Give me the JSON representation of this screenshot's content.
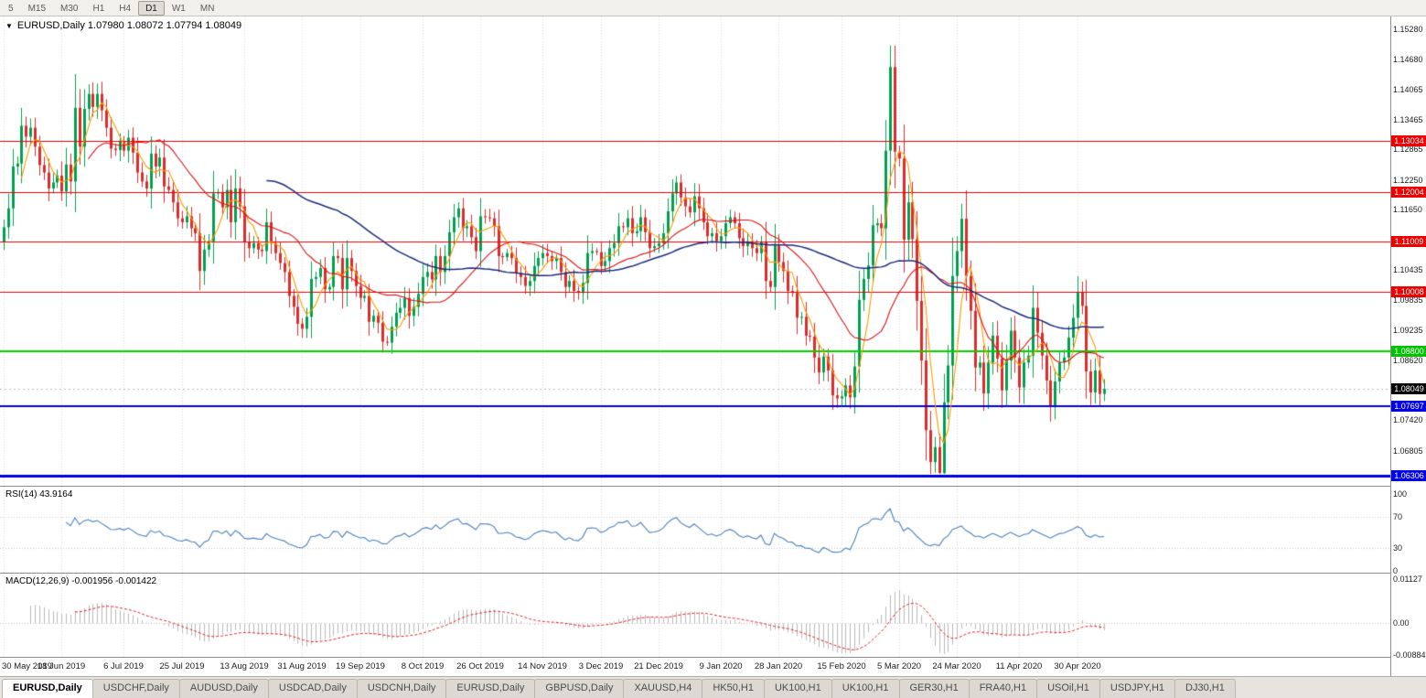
{
  "toolbar": {
    "timeframes": [
      "5",
      "M15",
      "M30",
      "H1",
      "H4",
      "D1",
      "W1",
      "MN"
    ],
    "active_timeframe": "D1"
  },
  "chart": {
    "header": "EURUSD,Daily  1.07980 1.08072 1.07794 1.08049",
    "symbol": "EURUSD,Daily",
    "open": "1.07980",
    "high": "1.08072",
    "low": "1.07794",
    "close": "1.08049",
    "dropdown_icon": "▼"
  },
  "price_axis": {
    "ticks": [
      "1.15280",
      "1.14680",
      "1.14065",
      "1.13465",
      "1.12865",
      "1.12250",
      "1.11650",
      "1.10435",
      "1.09835",
      "1.09235",
      "1.08620",
      "1.07420",
      "1.06805"
    ],
    "badges": [
      {
        "text": "1.13034",
        "bg": "#ee0000"
      },
      {
        "text": "1.12004",
        "bg": "#ee0000"
      },
      {
        "text": "1.11009",
        "bg": "#ee0000"
      },
      {
        "text": "1.10008",
        "bg": "#ee0000"
      },
      {
        "text": "1.08800",
        "bg": "#00c400"
      },
      {
        "text": "1.08049",
        "bg": "#000000"
      },
      {
        "text": "1.07697",
        "bg": "#0000e6"
      },
      {
        "text": "1.06306",
        "bg": "#0000e6"
      }
    ]
  },
  "rsi": {
    "label": "RSI(14) 43.9164",
    "period": 14,
    "value": 43.9164,
    "axis": [
      "100",
      "70",
      "30",
      "0"
    ],
    "upper": 70,
    "lower": 30
  },
  "macd": {
    "label": "MACD(12,26,9) -0.001956 -0.001422",
    "value": -0.001956,
    "signal": -0.001422,
    "axis": [
      "0.01127",
      "0.00",
      "-0.00884"
    ]
  },
  "dates": [
    "30 May 2019",
    "18 Jun 2019",
    "6 Jul 2019",
    "25 Jul 2019",
    "13 Aug 2019",
    "31 Aug 2019",
    "19 Sep 2019",
    "8 Oct 2019",
    "26 Oct 2019",
    "14 Nov 2019",
    "3 Dec 2019",
    "21 Dec 2019",
    "9 Jan 2020",
    "28 Jan 2020",
    "15 Feb 2020",
    "5 Mar 2020",
    "24 Mar 2020",
    "11 Apr 2020",
    "30 Apr 2020"
  ],
  "tabs": [
    {
      "label": "EURUSD,Daily",
      "active": true
    },
    {
      "label": "USDCHF,Daily",
      "active": false
    },
    {
      "label": "AUDUSD,Daily",
      "active": false
    },
    {
      "label": "USDCAD,Daily",
      "active": false
    },
    {
      "label": "USDCNH,Daily",
      "active": false
    },
    {
      "label": "EURUSD,Daily",
      "active": false
    },
    {
      "label": "GBPUSD,Daily",
      "active": false
    },
    {
      "label": "XAUUSD,H4",
      "active": false
    },
    {
      "label": "HK50,H1",
      "active": false
    },
    {
      "label": "UK100,H1",
      "active": false
    },
    {
      "label": "UK100,H1",
      "active": false
    },
    {
      "label": "GER30,H1",
      "active": false
    },
    {
      "label": "FRA40,H1",
      "active": false
    },
    {
      "label": "USOil,H1",
      "active": false
    },
    {
      "label": "USDJPY,H1",
      "active": false
    },
    {
      "label": "DJ30,H1",
      "active": false
    }
  ],
  "chart_data": {
    "type": "candlestick",
    "symbol": "EURUSD",
    "timeframe": "D1",
    "title": "EURUSD,Daily",
    "x_range": [
      "30 May 2019",
      "7 May 2020"
    ],
    "y_range": [
      1.0555,
      1.1554
    ],
    "current_price": 1.08049,
    "extreme_high": 1.1495,
    "extreme_low": 1.0634,
    "levels": [
      {
        "price": 1.13034,
        "color": "#ee0000",
        "width": 1,
        "kind": "resistance"
      },
      {
        "price": 1.12004,
        "color": "#ee0000",
        "width": 1,
        "kind": "resistance"
      },
      {
        "price": 1.11009,
        "color": "#ee0000",
        "width": 1,
        "kind": "resistance"
      },
      {
        "price": 1.10008,
        "color": "#ee0000",
        "width": 1,
        "kind": "resistance"
      },
      {
        "price": 1.088,
        "color": "#00d200",
        "width": 2,
        "kind": "support"
      },
      {
        "price": 1.07697,
        "color": "#0000e6",
        "width": 2,
        "kind": "support"
      },
      {
        "price": 1.06306,
        "color": "#0000e6",
        "width": 3,
        "kind": "support"
      }
    ],
    "moving_averages": [
      {
        "period": 5,
        "color": "#ff9900"
      },
      {
        "period": 20,
        "color": "#dd1111"
      },
      {
        "period": 60,
        "color": "#1c2b7f"
      }
    ],
    "colors": {
      "up": "#00a050",
      "down": "#dd2c2c",
      "grid": "#d9d9d9",
      "rsi": "#4a80bd",
      "macd_hist": "#b9b9b9",
      "macd_signal": "#dd2222"
    },
    "rsi_value": 43.9164,
    "macd_value": -0.001956,
    "macd_signal_value": -0.001422,
    "closes": [
      1.113,
      1.1168,
      1.1252,
      1.1258,
      1.1334,
      1.1312,
      1.133,
      1.1292,
      1.1255,
      1.124,
      1.1208,
      1.122,
      1.1234,
      1.1202,
      1.1256,
      1.1222,
      1.137,
      1.1292,
      1.1368,
      1.1398,
      1.1372,
      1.1398,
      1.1365,
      1.133,
      1.1288,
      1.1285,
      1.1302,
      1.1284,
      1.131,
      1.128,
      1.124,
      1.1222,
      1.1208,
      1.1278,
      1.1252,
      1.127,
      1.1212,
      1.1205,
      1.118,
      1.1148,
      1.114,
      1.1152,
      1.1128,
      1.1118,
      1.1042,
      1.1085,
      1.1102,
      1.1198,
      1.12,
      1.117,
      1.1205,
      1.114,
      1.1208,
      1.1172,
      1.11,
      1.1088,
      1.1098,
      1.1085,
      1.1082,
      1.114,
      1.1098,
      1.1078,
      1.1058,
      1.104,
      1.0992,
      1.097,
      1.0936,
      1.0926,
      1.095,
      1.1026,
      1.103,
      1.1048,
      1.1005,
      1.101,
      1.1072,
      1.1068,
      1.1005,
      1.1068,
      1.1042,
      1.1012,
      1.0988,
      1.0992,
      1.094,
      1.0952,
      1.0938,
      1.09,
      1.0898,
      1.093,
      1.0958,
      1.0968,
      1.0988,
      1.0952,
      1.097,
      1.0996,
      1.103,
      1.104,
      1.1025,
      1.1072,
      1.104,
      1.1072,
      1.112,
      1.115,
      1.1168,
      1.1128,
      1.1132,
      1.111,
      1.1082,
      1.1152,
      1.115,
      1.1148,
      1.1132,
      1.1072,
      1.107,
      1.1078,
      1.1068,
      1.1038,
      1.103,
      1.1012,
      1.1022,
      1.1052,
      1.1068,
      1.1078,
      1.1072,
      1.1062,
      1.1068,
      1.104,
      1.101,
      1.1022,
      1.1002,
      1.0998,
      1.1018,
      1.1078,
      1.1082,
      1.108,
      1.1052,
      1.1062,
      1.1088,
      1.1098,
      1.1132,
      1.113,
      1.1148,
      1.1118,
      1.1122,
      1.115,
      1.112,
      1.1088,
      1.1092,
      1.1098,
      1.1118,
      1.1162,
      1.1198,
      1.122,
      1.119,
      1.1172,
      1.116,
      1.1192,
      1.1168,
      1.114,
      1.1112,
      1.1118,
      1.1102,
      1.1112,
      1.1138,
      1.115,
      1.1138,
      1.1108,
      1.1092,
      1.1102,
      1.1088,
      1.1078,
      1.11,
      1.1022,
      1.101,
      1.1093,
      1.106,
      1.1042,
      1.1002,
      1.0998,
      1.0948,
      1.095,
      1.0912,
      1.091,
      1.0868,
      1.0838,
      1.087,
      1.0842,
      1.0792,
      1.0786,
      1.079,
      1.0812,
      1.0788,
      1.085,
      1.0984,
      1.1026,
      1.1053,
      1.1134,
      1.1138,
      1.1128,
      1.1284,
      1.1452,
      1.1282,
      1.1268,
      1.1105,
      1.118,
      1.1106,
      1.0982,
      1.0862,
      1.0722,
      1.0658,
      1.0688,
      1.0636,
      1.0778,
      1.0852,
      1.1032,
      1.1082,
      1.1147,
      1.1032,
      1.0962,
      1.0848,
      1.0858,
      1.0796,
      1.0858,
      1.0912,
      1.0866,
      1.0802,
      1.0862,
      1.0922,
      1.0868,
      1.0808,
      1.0858,
      1.0872,
      1.0968,
      1.0918,
      1.0872,
      1.0822,
      1.0772,
      1.082,
      1.0858,
      1.0868,
      1.0908,
      1.0948,
      1.1,
      1.0972,
      1.084,
      1.0798,
      1.0842,
      1.0795,
      1.0805
    ]
  }
}
